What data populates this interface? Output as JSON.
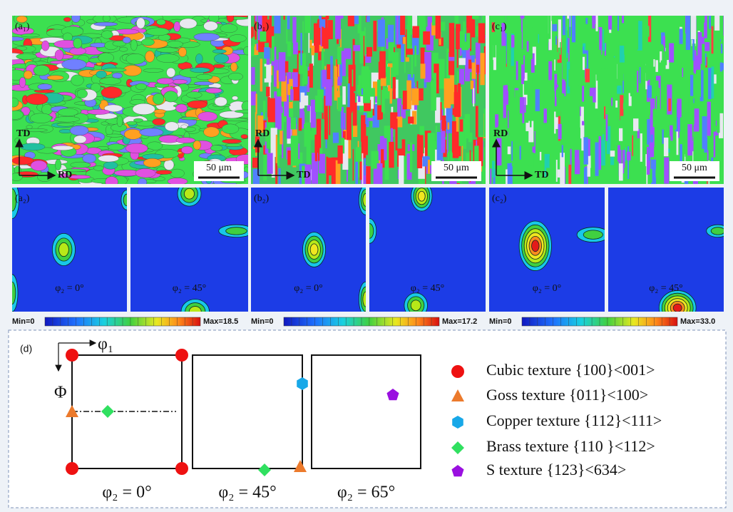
{
  "maps": [
    {
      "label": "(a₁)",
      "axis_v": "TD",
      "axis_h": "RD",
      "scale": "50 μm"
    },
    {
      "label": "(b₁)",
      "axis_v": "RD",
      "axis_h": "TD",
      "scale": "50 μm"
    },
    {
      "label": "(c₁)",
      "axis_v": "RD",
      "axis_h": "TD",
      "scale": "50 μm"
    }
  ],
  "odf": [
    {
      "label": "(a₂)",
      "sections": [
        "φ₂ = 0°",
        "φ₂ = 45°"
      ],
      "min": "Min=0",
      "max": "Max=18.5"
    },
    {
      "label": "(b₂)",
      "sections": [
        "φ₂ = 0°",
        "φ₂ = 45°"
      ],
      "min": "Min=0",
      "max": "Max=17.2"
    },
    {
      "label": "(c₂)",
      "sections": [
        "φ₂ = 0°",
        "φ₂ = 45°"
      ],
      "min": "Min=0",
      "max": "Max=33.0"
    }
  ],
  "d": {
    "label": "(d)",
    "axis_x": "φ₁",
    "axis_y": "Φ",
    "sections": [
      "φ₂ = 0°",
      "φ₂ = 45°",
      "φ₂ = 65°"
    ],
    "legend": [
      "Cubic texture {100}<001>",
      "Goss texture {011}<100>",
      "Copper texture {112}<111>",
      "Brass texture {110 }<112>",
      "S texture {123}<634>"
    ]
  }
}
